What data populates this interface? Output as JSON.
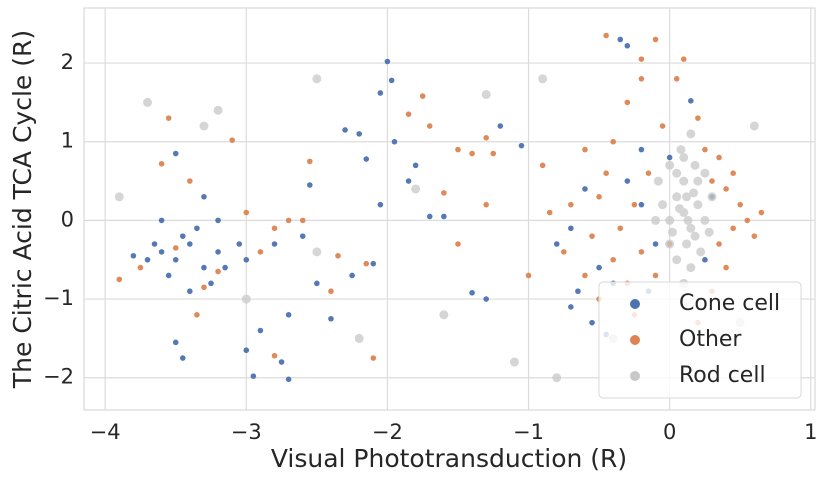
{
  "chart_data": {
    "type": "scatter",
    "xlabel": "Visual Phototransduction (R)",
    "ylabel": "The Citric Acid TCA Cycle (R)",
    "xlim": [
      -4.15,
      1.03
    ],
    "ylim": [
      -2.41,
      2.7
    ],
    "xticks": [
      {
        "value": -4,
        "label": "−4"
      },
      {
        "value": -3,
        "label": "−3"
      },
      {
        "value": -2,
        "label": "−2"
      },
      {
        "value": -1,
        "label": "−1"
      },
      0,
      1
    ],
    "yticks": [
      {
        "value": -2,
        "label": "−2"
      },
      {
        "value": -1,
        "label": "−1"
      },
      0,
      1,
      2
    ],
    "grid": true,
    "legend": "lower right",
    "series": [
      {
        "name": "Cone cell",
        "color": "#4c72b0",
        "x": [
          -3.6,
          -3.5,
          -3.4,
          -3.3,
          -3.55,
          -3.45,
          -3.7,
          -3.2,
          -3.25,
          -3.35,
          -3.5,
          -3.3,
          -3.6,
          -3.15,
          -3.05,
          -3.8,
          -3.4,
          -3.5,
          -3.45,
          -3.65,
          -3.2,
          -3.0,
          -2.9,
          -2.75,
          -2.7,
          -2.95,
          -3.0,
          -2.7,
          -2.5,
          -2.55,
          -2.4,
          -2.3,
          -2.2,
          -2.15,
          -2.05,
          -2.0,
          -1.97,
          -1.95,
          -2.05,
          -1.85,
          -1.8,
          -1.7,
          -1.6,
          -2.25,
          -2.1,
          -1.2,
          -1.05,
          -1.4,
          -1.3,
          -2.6,
          -2.8,
          -0.8,
          -0.7,
          -0.6,
          -0.5,
          -0.65,
          -0.7,
          -0.55,
          -0.4,
          -0.3,
          -0.2,
          -0.1,
          0.0,
          0.15,
          0.25,
          -0.45,
          -0.35,
          -0.3,
          -0.2,
          0.3,
          -0.15
        ],
        "values": [
          -0.4,
          -0.5,
          -0.3,
          -0.6,
          -0.7,
          -0.2,
          -0.5,
          -0.4,
          -0.8,
          -0.1,
          0.85,
          0.3,
          0.0,
          -0.6,
          -0.3,
          -0.45,
          -0.9,
          -1.55,
          -1.75,
          -0.3,
          0.0,
          -0.5,
          -1.4,
          -1.8,
          -2.02,
          -1.98,
          -1.65,
          -1.2,
          -0.8,
          0.45,
          -1.25,
          1.15,
          1.1,
          0.78,
          1.62,
          2.02,
          1.78,
          1.0,
          0.2,
          0.5,
          0.7,
          0.05,
          0.05,
          -0.7,
          -0.55,
          1.2,
          0.95,
          -0.92,
          -1.0,
          -0.2,
          -0.3,
          -0.3,
          -0.1,
          0.4,
          -0.6,
          -0.9,
          -1.1,
          -1.3,
          -0.8,
          0.5,
          0.2,
          -0.3,
          0.8,
          1.52,
          -0.5,
          -1.45,
          2.3,
          2.22,
          0.9,
          0.3,
          -0.9
        ]
      },
      {
        "name": "Other",
        "color": "#dd8452",
        "x": [
          -3.9,
          -3.55,
          -3.6,
          -3.4,
          -3.1,
          -3.3,
          -3.2,
          -3.35,
          -2.9,
          -2.8,
          -2.7,
          -2.6,
          -3.0,
          -3.5,
          -3.75,
          -2.55,
          -2.8,
          -2.4,
          -2.15,
          -2.1,
          -2.35,
          -1.75,
          -1.7,
          -1.85,
          -1.5,
          -1.4,
          -1.3,
          -1.25,
          -1.3,
          -1.0,
          -1.5,
          -1.6,
          -0.9,
          -0.85,
          -0.75,
          -0.6,
          -0.55,
          -0.5,
          -0.45,
          -0.4,
          -0.4,
          -0.35,
          -0.3,
          -0.3,
          -0.25,
          -0.2,
          -0.2,
          -0.15,
          -0.1,
          -0.1,
          -0.05,
          0.0,
          0.05,
          0.1,
          0.2,
          0.25,
          0.3,
          0.35,
          0.4,
          0.45,
          0.5,
          0.55,
          0.6,
          0.35,
          0.4,
          0.3,
          0.2,
          -0.6,
          -0.7,
          -0.5,
          -0.25,
          0.45,
          -0.45,
          -0.2,
          0.65
        ],
        "values": [
          -0.75,
          1.3,
          0.72,
          0.5,
          1.02,
          -0.85,
          -0.65,
          -1.2,
          -0.4,
          -0.1,
          0.0,
          0.0,
          0.1,
          -0.35,
          -0.6,
          0.75,
          -1.72,
          -0.9,
          -0.55,
          -1.75,
          -0.45,
          1.58,
          1.2,
          1.35,
          0.9,
          0.85,
          1.05,
          0.85,
          0.2,
          -0.7,
          -0.3,
          0.35,
          0.7,
          0.1,
          -0.4,
          0.9,
          -0.2,
          0.3,
          0.6,
          1.0,
          -0.5,
          -0.1,
          1.5,
          -0.8,
          0.2,
          -0.4,
          1.8,
          0.6,
          -0.7,
          2.3,
          1.2,
          -0.3,
          1.8,
          2.05,
          1.3,
          0.9,
          0.5,
          -0.3,
          0.4,
          -0.1,
          0.2,
          0.0,
          -0.2,
          0.8,
          -0.6,
          -0.9,
          -1.3,
          -0.7,
          0.2,
          -1.0,
          -1.2,
          0.6,
          2.35,
          2.05,
          0.1
        ]
      },
      {
        "name": "Rod cell",
        "color": "#c8c8c8",
        "x": [
          0.1,
          0.05,
          0.15,
          0.0,
          0.2,
          0.1,
          0.12,
          0.05,
          0.18,
          0.08,
          0.15,
          -0.05,
          0.25,
          0.22,
          0.0,
          0.1,
          0.3,
          -0.08,
          0.12,
          0.2,
          0.05,
          0.15,
          0.1,
          0.0,
          0.25,
          0.02,
          0.18,
          0.28,
          -0.1,
          0.13,
          0.07,
          0.17,
          -3.7,
          -3.2,
          -3.3,
          -2.5,
          -1.3,
          -3.0,
          -2.2,
          -1.1,
          -0.9,
          -0.4,
          0.5,
          0.6,
          -2.5,
          -1.8,
          -3.9,
          -0.8,
          -1.6
        ],
        "values": [
          0.1,
          0.3,
          -0.1,
          0.0,
          0.2,
          0.5,
          -0.3,
          -0.5,
          0.7,
          0.9,
          1.1,
          0.2,
          0.0,
          -0.4,
          -0.3,
          0.8,
          0.3,
          0.5,
          0.3,
          0.5,
          0.6,
          -0.6,
          -0.8,
          0.7,
          0.6,
          -0.15,
          -0.2,
          -0.15,
          0.0,
          0.0,
          0.15,
          0.35,
          1.5,
          1.4,
          1.2,
          1.8,
          1.6,
          -1.0,
          -1.5,
          -1.8,
          1.8,
          -1.5,
          -1.3,
          1.2,
          -0.4,
          0.4,
          0.3,
          -2.0,
          -1.2
        ]
      }
    ]
  }
}
